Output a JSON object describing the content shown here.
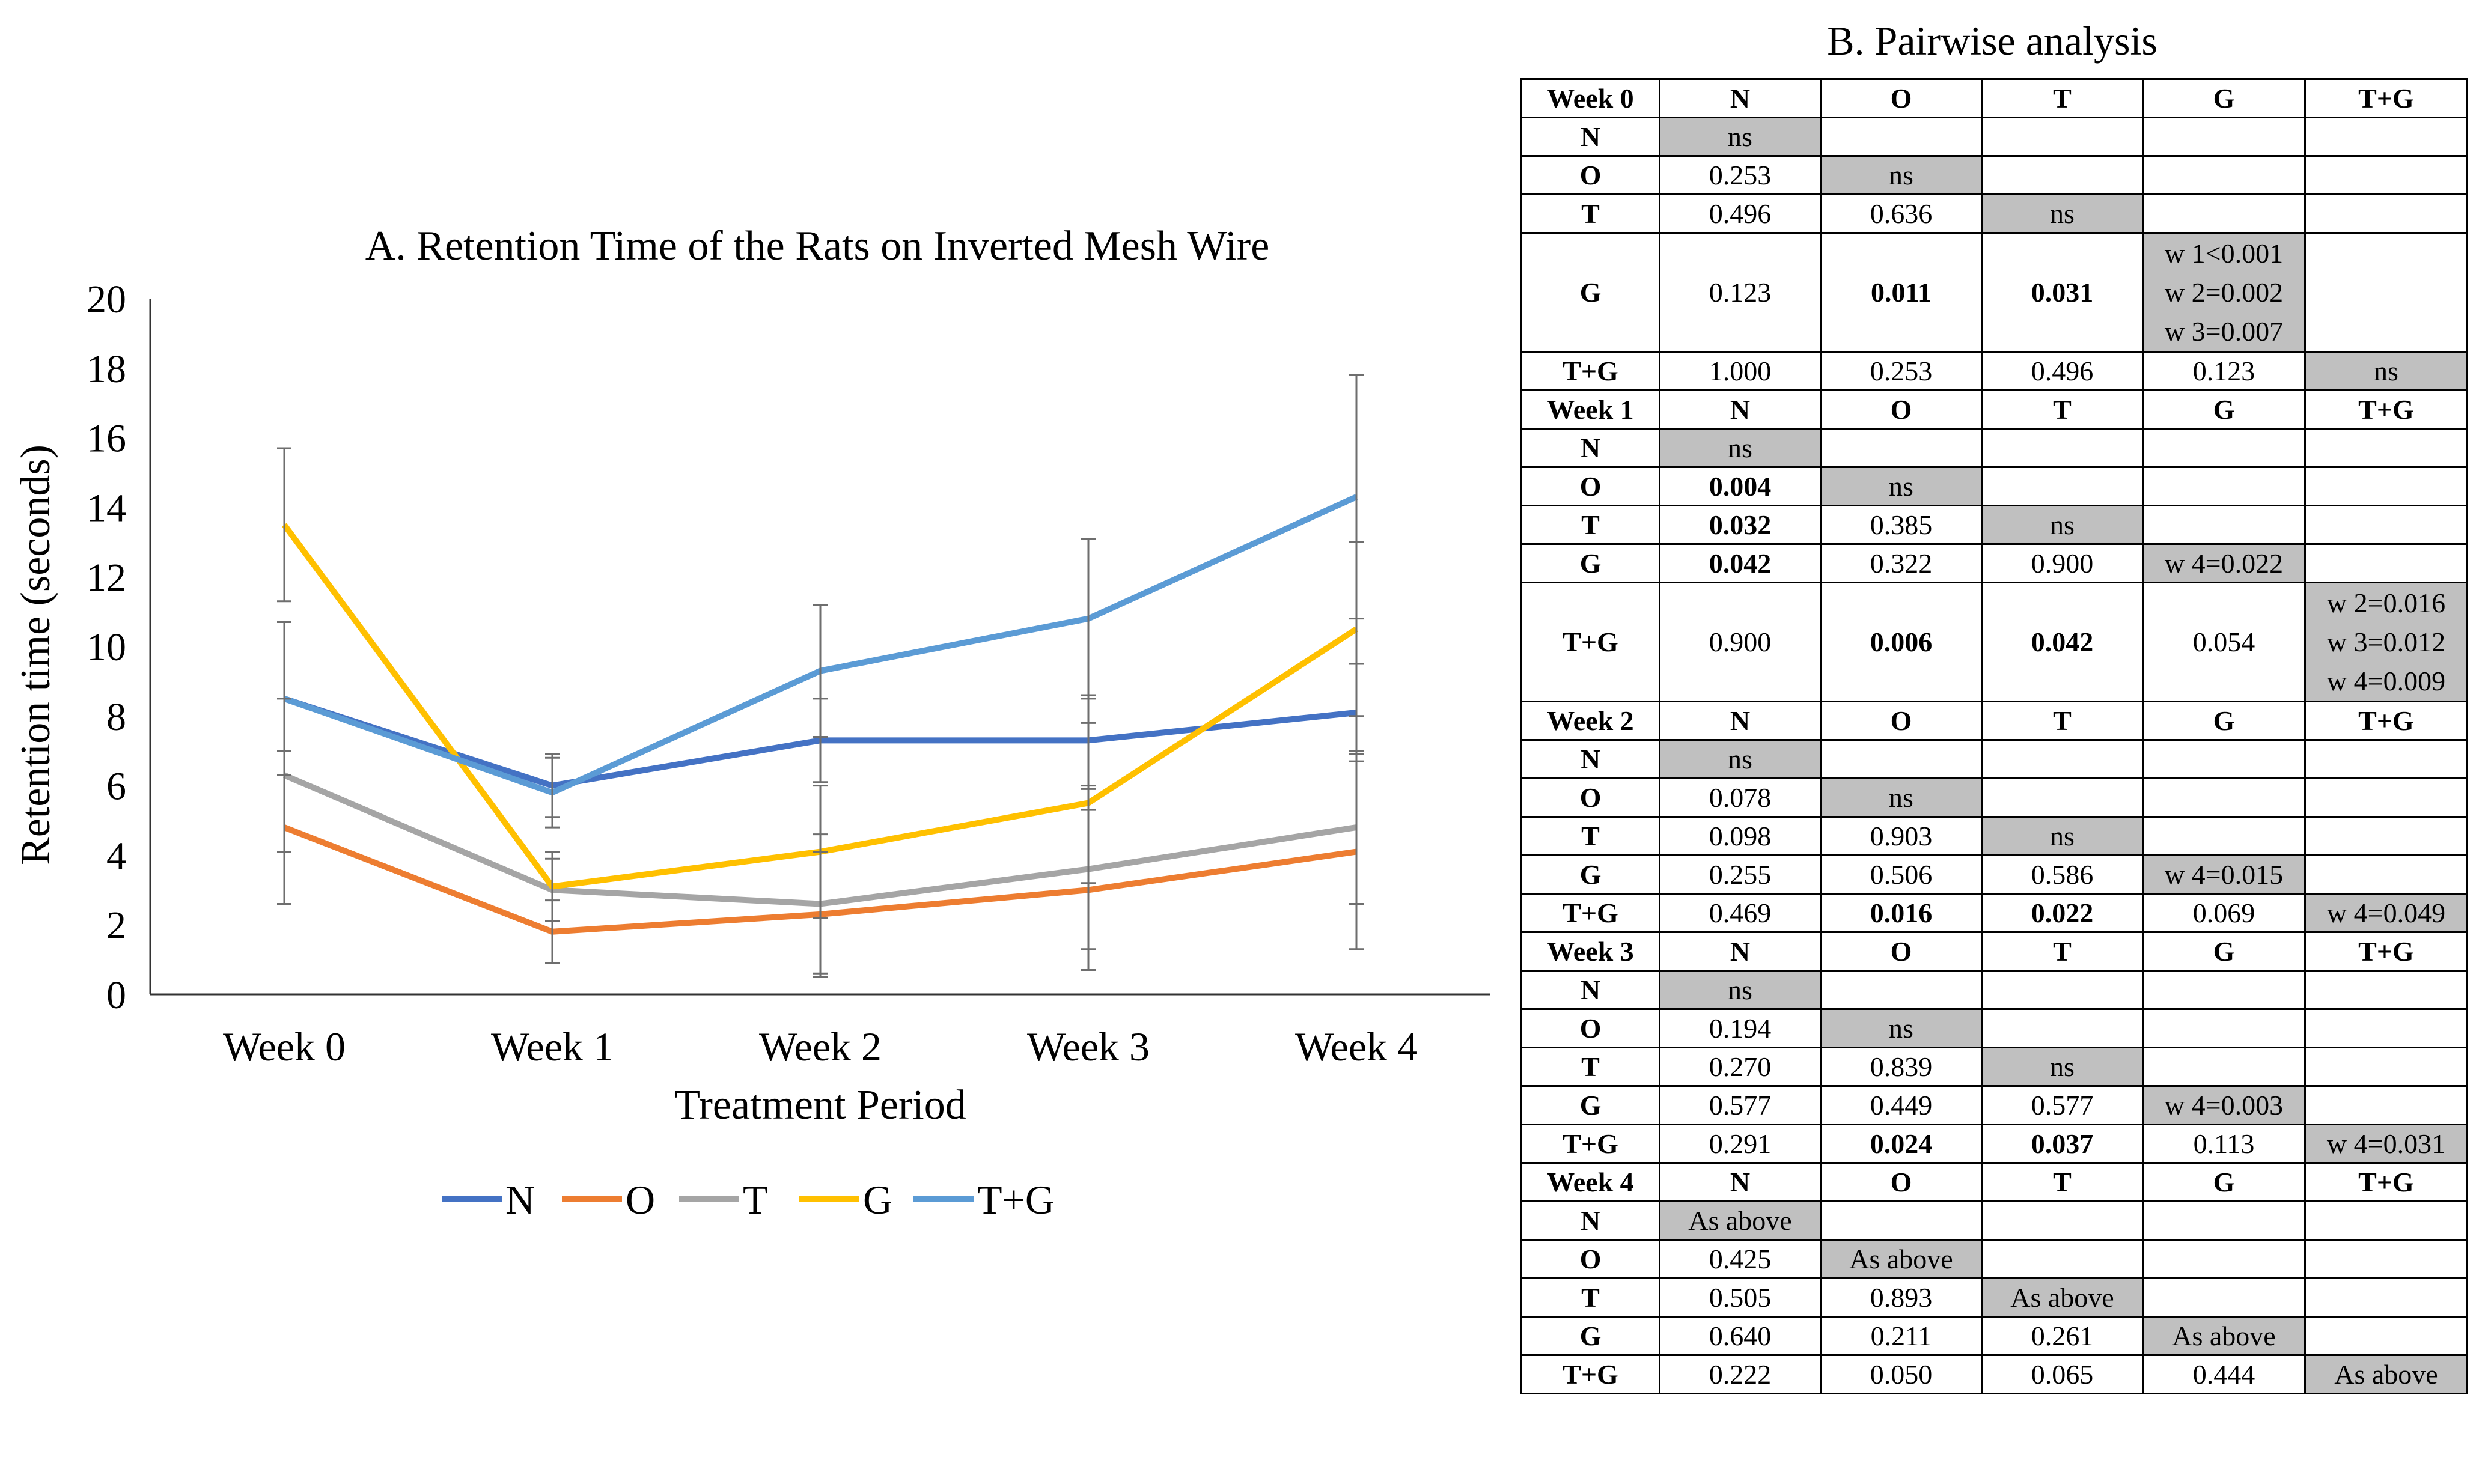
{
  "chart_data": {
    "type": "line",
    "title": "A. Retention Time of the Rats on Inverted Mesh Wire",
    "xlabel": "Treatment Period",
    "ylabel": "Retention time (seconds)",
    "categories": [
      "Week 0",
      "Week 1",
      "Week 2",
      "Week 3",
      "Week 4"
    ],
    "ylim": [
      0,
      20
    ],
    "yticks": [
      "0",
      "2",
      "4",
      "6",
      "8",
      "10",
      "12",
      "14",
      "16",
      "18",
      "20"
    ],
    "legend_position": "bottom",
    "series": [
      {
        "name": "N",
        "color": "#4472c4",
        "values": [
          8.5,
          6.0,
          7.3,
          7.3,
          8.1
        ],
        "errors": [
          2.2,
          0.9,
          1.2,
          1.3,
          1.4
        ]
      },
      {
        "name": "O",
        "color": "#ed7d31",
        "values": [
          4.8,
          1.8,
          2.3,
          3.0,
          4.1
        ],
        "errors": [
          2.2,
          0.9,
          1.8,
          2.3,
          2.8
        ]
      },
      {
        "name": "T",
        "color": "#a5a5a5",
        "values": [
          6.3,
          3.0,
          2.6,
          3.6,
          4.8
        ],
        "errors": [
          2.2,
          0.9,
          2.0,
          2.3,
          2.2
        ]
      },
      {
        "name": "G",
        "color": "#ffc000",
        "values": [
          13.5,
          3.1,
          4.1,
          5.5,
          10.5
        ],
        "errors": [
          2.2,
          1.0,
          1.9,
          2.3,
          2.5
        ]
      },
      {
        "name": "T+G",
        "color": "#5b9bd5",
        "values": [
          8.5,
          5.8,
          9.3,
          10.8,
          14.3
        ],
        "errors": [
          2.2,
          1.0,
          1.9,
          2.3,
          3.5
        ]
      }
    ]
  },
  "table": {
    "title": "B. Pairwise analysis",
    "columns": [
      "N",
      "O",
      "T",
      "G",
      "T+G"
    ],
    "blocks": [
      {
        "week": "Week 0",
        "rows": [
          {
            "label": "N",
            "cells": [
              "ns",
              "",
              "",
              "",
              ""
            ]
          },
          {
            "label": "O",
            "cells": [
              "0.253",
              "ns",
              "",
              "",
              ""
            ]
          },
          {
            "label": "T",
            "cells": [
              "0.496",
              "0.636",
              "ns",
              "",
              ""
            ]
          },
          {
            "label": "G",
            "cells": [
              "0.123",
              "0.011",
              "0.031",
              "w 1<0.001|w 2=0.002|w 3=0.007",
              ""
            ]
          },
          {
            "label": "T+G",
            "cells": [
              "1.000",
              "0.253",
              "0.496",
              "0.123",
              "ns"
            ]
          }
        ]
      },
      {
        "week": "Week 1",
        "rows": [
          {
            "label": "N",
            "cells": [
              "ns",
              "",
              "",
              "",
              ""
            ]
          },
          {
            "label": "O",
            "cells": [
              "0.004",
              "ns",
              "",
              "",
              ""
            ]
          },
          {
            "label": "T",
            "cells": [
              "0.032",
              "0.385",
              "ns",
              "",
              ""
            ]
          },
          {
            "label": "G",
            "cells": [
              "0.042",
              "0.322",
              "0.900",
              "w 4=0.022",
              ""
            ]
          },
          {
            "label": "T+G",
            "cells": [
              "0.900",
              "0.006",
              "0.042",
              "0.054",
              "w 2=0.016|w 3=0.012|w 4=0.009"
            ]
          }
        ]
      },
      {
        "week": "Week 2",
        "rows": [
          {
            "label": "N",
            "cells": [
              "ns",
              "",
              "",
              "",
              ""
            ]
          },
          {
            "label": "O",
            "cells": [
              "0.078",
              "ns",
              "",
              "",
              ""
            ]
          },
          {
            "label": "T",
            "cells": [
              "0.098",
              "0.903",
              "ns",
              "",
              ""
            ]
          },
          {
            "label": "G",
            "cells": [
              "0.255",
              "0.506",
              "0.586",
              "w 4=0.015",
              ""
            ]
          },
          {
            "label": "T+G",
            "cells": [
              "0.469",
              "0.016",
              "0.022",
              "0.069",
              "w 4=0.049"
            ]
          }
        ]
      },
      {
        "week": "Week 3",
        "rows": [
          {
            "label": "N",
            "cells": [
              "ns",
              "",
              "",
              "",
              ""
            ]
          },
          {
            "label": "O",
            "cells": [
              "0.194",
              "ns",
              "",
              "",
              ""
            ]
          },
          {
            "label": "T",
            "cells": [
              "0.270",
              "0.839",
              "ns",
              "",
              ""
            ]
          },
          {
            "label": "G",
            "cells": [
              "0.577",
              "0.449",
              "0.577",
              "w 4=0.003",
              ""
            ]
          },
          {
            "label": "T+G",
            "cells": [
              "0.291",
              "0.024",
              "0.037",
              "0.113",
              "w 4=0.031"
            ]
          }
        ]
      },
      {
        "week": "Week 4",
        "rows": [
          {
            "label": "N",
            "cells": [
              "As above",
              "",
              "",
              "",
              ""
            ]
          },
          {
            "label": "O",
            "cells": [
              "0.425",
              "As above",
              "",
              "",
              ""
            ]
          },
          {
            "label": "T",
            "cells": [
              "0.505",
              "0.893",
              "As above",
              "",
              ""
            ]
          },
          {
            "label": "G",
            "cells": [
              "0.640",
              "0.211",
              "0.261",
              "As above",
              ""
            ]
          },
          {
            "label": "T+G",
            "cells": [
              "0.222",
              "0.050",
              "0.065",
              "0.444",
              "As above"
            ]
          }
        ]
      }
    ],
    "bold_values": [
      "0.011",
      "0.031",
      "0.004",
      "0.032",
      "0.042",
      "0.006",
      "0.016",
      "0.022",
      "0.024",
      "0.037"
    ]
  }
}
